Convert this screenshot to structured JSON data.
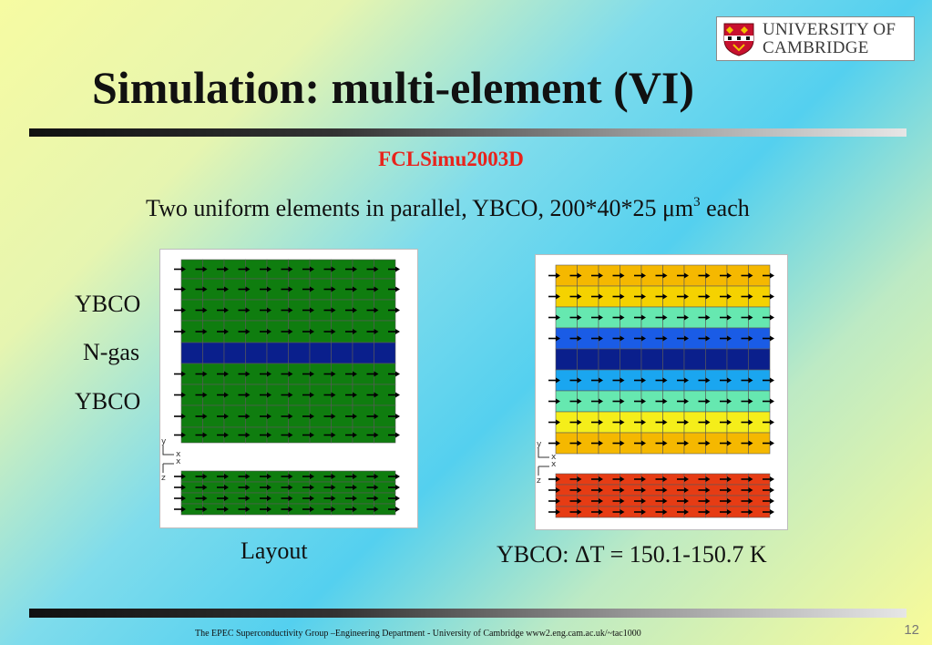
{
  "logo": {
    "line1": "UNIVERSITY OF",
    "line2": "CAMBRIDGE"
  },
  "title": "Simulation: multi-element (VI)",
  "subtitle": "FCLSimu2003D",
  "description": {
    "text": "Two uniform elements in parallel, YBCO, 200*40*25 μm",
    "superscript": "3",
    "suffix": "each"
  },
  "labels": [
    "YBCO",
    "N-gas",
    "YBCO"
  ],
  "captions": {
    "layout": "Layout",
    "result": "YBCO: ΔT = 150.1-150.7 K"
  },
  "axis_labels": {
    "y": "y",
    "x": "x",
    "z": "z"
  },
  "colors": {
    "green": "#0f7d0f",
    "nitrogen_blue": "#0a1f8c",
    "result_rows_top": [
      "#f5b800",
      "#f5d200",
      "#66e8b0",
      "#1a5ce6",
      "#0a1f8c",
      "#1aa6f0",
      "#66e8b0",
      "#f5ee1a",
      "#f5b800"
    ],
    "result_rows_bottom": "#e63c14"
  },
  "footer": "The EPEC Superconductivity Group –Engineering Department -  University of Cambridge www2.eng.cam.ac.uk/~tac1000",
  "page_number": "12"
}
